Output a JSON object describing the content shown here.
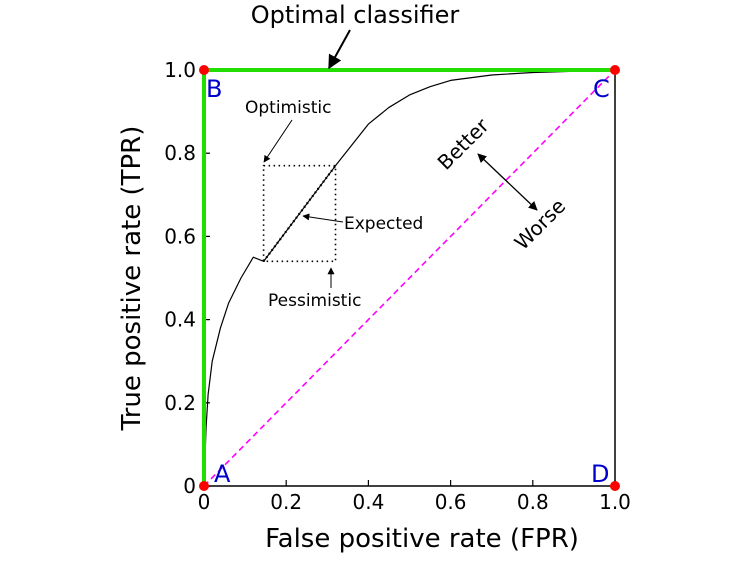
{
  "chart_data": {
    "type": "line",
    "title": "",
    "xlabel": "False positive rate (FPR)",
    "ylabel": "True positive rate (TPR)",
    "xlim": [
      0,
      1
    ],
    "ylim": [
      0,
      1
    ],
    "grid": false,
    "x_ticks": [
      0,
      0.2,
      0.4,
      0.6,
      0.8,
      1.0
    ],
    "x_tick_labels": [
      "0",
      "0.2",
      "0.4",
      "0.6",
      "0.8",
      "1.0"
    ],
    "y_ticks": [
      0,
      0.2,
      0.4,
      0.6,
      0.8,
      1.0
    ],
    "y_tick_labels": [
      "0",
      "0.2",
      "0.4",
      "0.6",
      "0.8",
      "1.0"
    ],
    "corner_points": [
      {
        "label": "A",
        "x": 0,
        "y": 0
      },
      {
        "label": "B",
        "x": 0,
        "y": 1
      },
      {
        "label": "C",
        "x": 1,
        "y": 1
      },
      {
        "label": "D",
        "x": 1,
        "y": 0
      }
    ],
    "series": [
      {
        "role": "optimal",
        "color": "#22dd00",
        "style": "solid",
        "x": [
          0,
          0,
          1
        ],
        "y": [
          0,
          1,
          1
        ]
      },
      {
        "role": "random",
        "color": "#ff00ff",
        "style": "dashed",
        "x": [
          0,
          1
        ],
        "y": [
          0,
          1
        ]
      },
      {
        "role": "roc",
        "color": "#000000",
        "style": "solid",
        "x": [
          0,
          0.005,
          0.01,
          0.02,
          0.04,
          0.06,
          0.09,
          0.12,
          0.145,
          0.32,
          0.36,
          0.4,
          0.45,
          0.5,
          0.55,
          0.6,
          0.7,
          0.8,
          0.9,
          1.0
        ],
        "y": [
          0,
          0.14,
          0.22,
          0.3,
          0.38,
          0.44,
          0.5,
          0.55,
          0.54,
          0.77,
          0.82,
          0.87,
          0.91,
          0.94,
          0.96,
          0.975,
          0.988,
          0.994,
          0.997,
          1.0
        ]
      },
      {
        "role": "expected",
        "color": "#000000",
        "style": "dotted",
        "x": [
          0.145,
          0.32
        ],
        "y": [
          0.54,
          0.77
        ]
      }
    ],
    "uncertainty_box": {
      "x": [
        0.145,
        0.32
      ],
      "y": [
        0.54,
        0.77
      ]
    },
    "annotations": {
      "optimal": "Optimal classifier",
      "optimistic": "Optimistic",
      "expected": "Expected",
      "pessimistic": "Pessimistic",
      "better": "Better",
      "worse": "Worse"
    },
    "colors": {
      "point": "#ff0000",
      "corner_label": "#0000cc",
      "optimal": "#22dd00",
      "random": "#ff00ff",
      "axes": "#000000"
    }
  }
}
